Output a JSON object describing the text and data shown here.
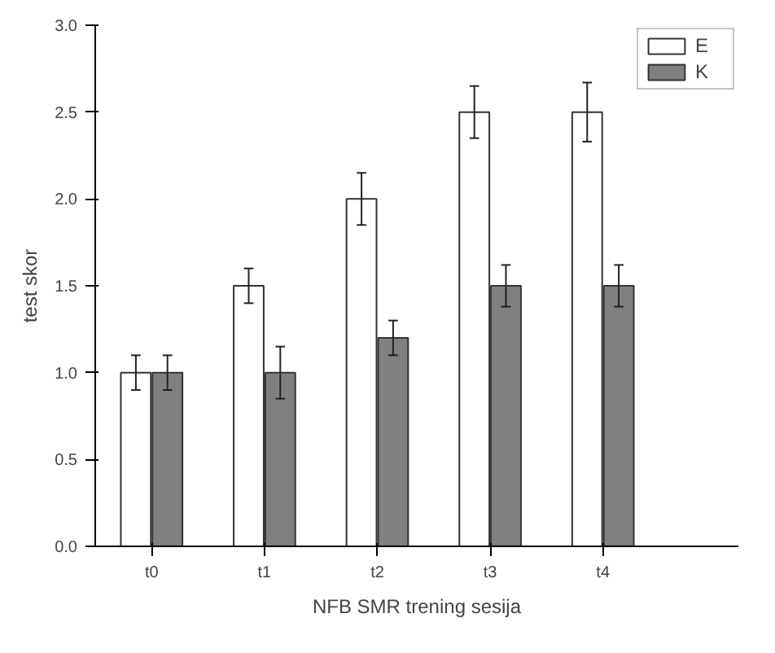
{
  "chart_data": {
    "type": "bar",
    "xlabel": "NFB SMR trening sesija",
    "ylabel": "test skor",
    "categories": [
      "t0",
      "t1",
      "t2",
      "t3",
      "t4"
    ],
    "series": [
      {
        "name": "E",
        "color": "#ffffff",
        "values": [
          1.0,
          1.5,
          2.0,
          2.5,
          2.5
        ],
        "errors": [
          0.1,
          0.1,
          0.15,
          0.15,
          0.17
        ]
      },
      {
        "name": "K",
        "color": "#808080",
        "values": [
          1.0,
          1.0,
          1.2,
          1.5,
          1.5
        ],
        "errors": [
          0.1,
          0.15,
          0.1,
          0.12,
          0.12
        ]
      }
    ],
    "ylim": [
      0,
      3.0
    ],
    "yticks": [
      {
        "value": 0,
        "label": "0.0"
      },
      {
        "value": 0.5,
        "label": "0.5"
      },
      {
        "value": 1.0,
        "label": "1.0"
      },
      {
        "value": 1.5,
        "label": "1.5"
      },
      {
        "value": 2.0,
        "label": "2.0"
      },
      {
        "value": 2.5,
        "label": "2.5"
      },
      {
        "value": 3.0,
        "label": "3.0"
      }
    ],
    "grid": false,
    "legend": "top right"
  }
}
